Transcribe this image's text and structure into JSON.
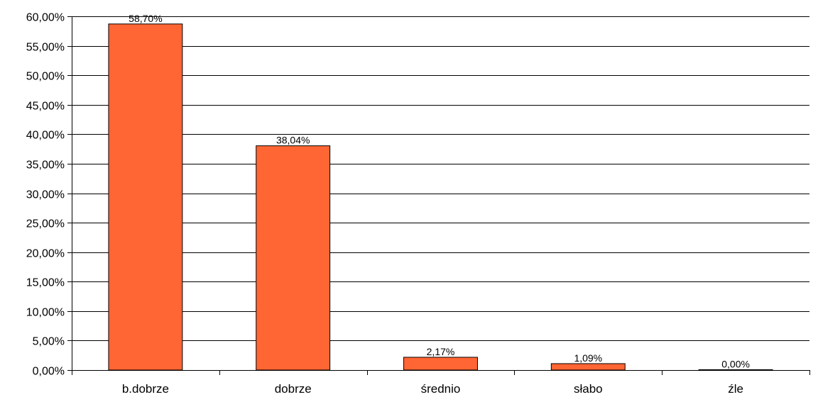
{
  "chart_data": {
    "type": "bar",
    "title": "",
    "xlabel": "",
    "ylabel": "",
    "categories": [
      "b.dobrze",
      "dobrze",
      "średnio",
      "słabo",
      "źle"
    ],
    "values": [
      58.7,
      38.04,
      2.17,
      1.09,
      0.0
    ],
    "data_labels": [
      "58,70%",
      "38,04%",
      "2,17%",
      "1,09%",
      "0,00%"
    ],
    "ylim": [
      0,
      60
    ],
    "yticks": [
      0,
      5,
      10,
      15,
      20,
      25,
      30,
      35,
      40,
      45,
      50,
      55,
      60
    ],
    "ytick_labels": [
      "0,00%",
      "5,00%",
      "10,00%",
      "15,00%",
      "20,00%",
      "25,00%",
      "30,00%",
      "35,00%",
      "40,00%",
      "45,00%",
      "50,00%",
      "55,00%",
      "60,00%"
    ],
    "grid": true,
    "legend": "none",
    "colors": {
      "bar_fill": "#ff6633",
      "bar_stroke": "#000000",
      "grid": "#000000"
    }
  }
}
